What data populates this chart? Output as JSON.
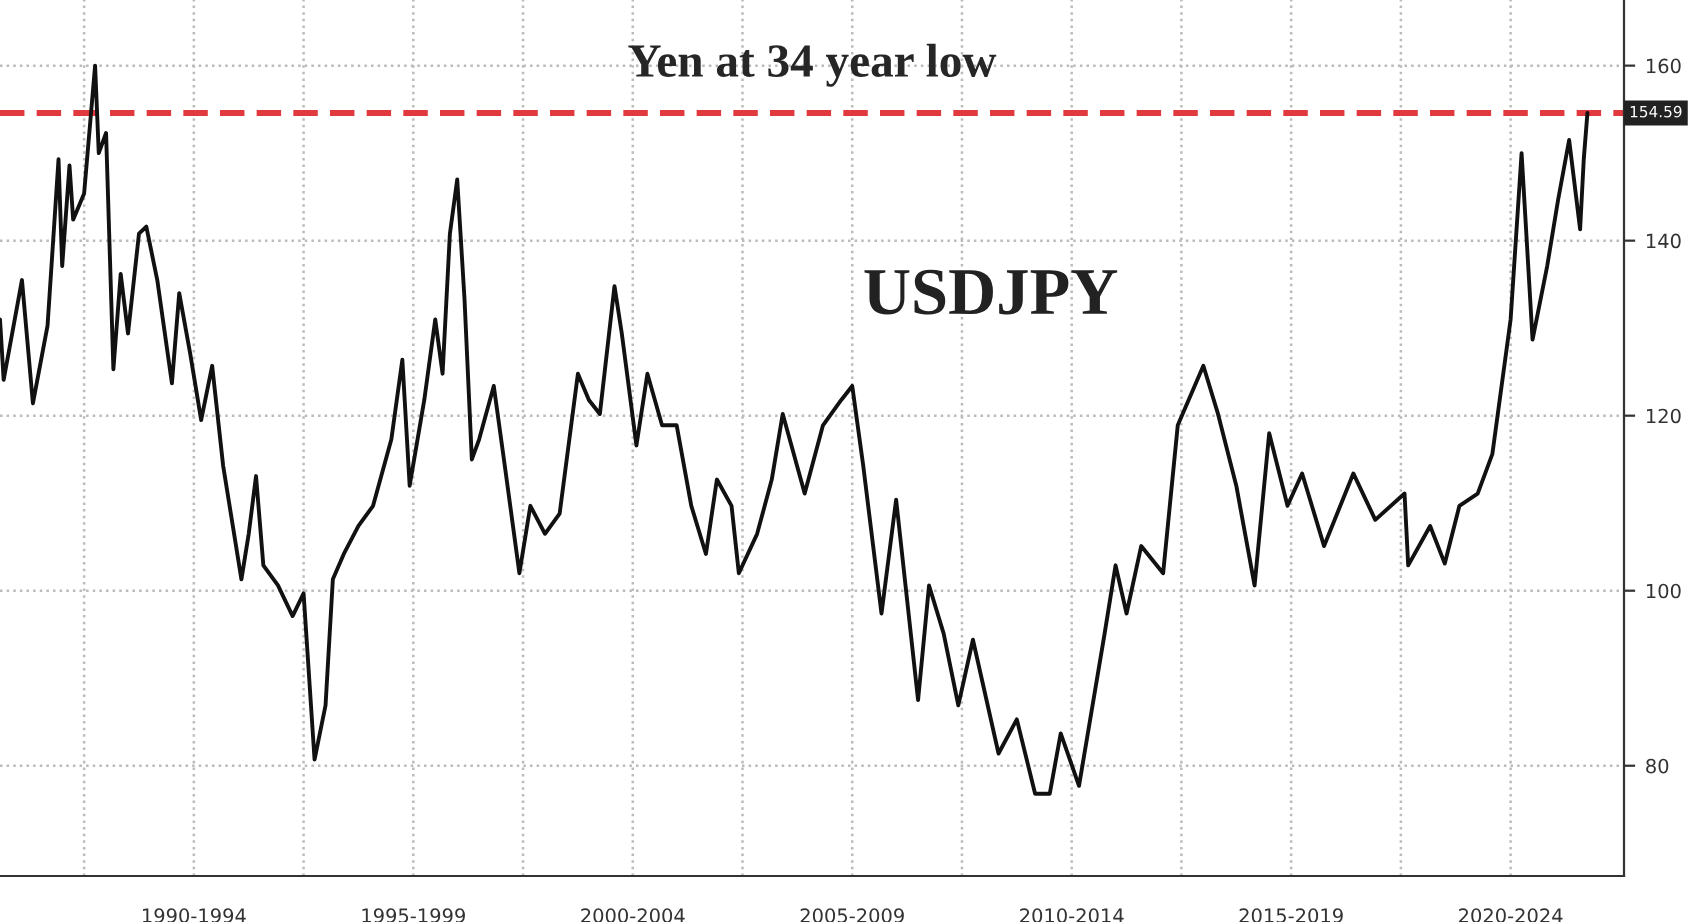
{
  "chart_data": {
    "type": "line",
    "x": [
      "1988-02",
      "1988-03",
      "1988-08",
      "1988-11",
      "1989-03",
      "1989-06",
      "1989-07",
      "1989-09",
      "1989-10",
      "1990-01",
      "1990-04",
      "1990-05",
      "1990-07",
      "1990-09",
      "1990-11",
      "1991-01",
      "1991-04",
      "1991-06",
      "1991-09",
      "1992-01",
      "1992-03",
      "1992-06",
      "1992-09",
      "1992-12",
      "1993-03",
      "1993-08",
      "1993-10",
      "1993-12",
      "1994-02",
      "1994-06",
      "1994-10",
      "1995-01",
      "1995-04",
      "1995-07",
      "1995-09",
      "1995-12",
      "1996-04",
      "1996-08",
      "1997-01",
      "1997-04",
      "1997-06",
      "1997-10",
      "1998-01",
      "1998-03",
      "1998-05",
      "1998-07",
      "1998-09",
      "1998-11",
      "1999-01",
      "1999-05",
      "1999-08",
      "1999-12",
      "2000-03",
      "2000-07",
      "2000-11",
      "2001-04",
      "2001-07",
      "2001-10",
      "2002-02",
      "2002-04",
      "2002-08",
      "2002-11",
      "2003-03",
      "2003-07",
      "2003-11",
      "2004-03",
      "2004-06",
      "2004-10",
      "2004-12",
      "2005-05",
      "2005-09",
      "2005-12",
      "2006-06",
      "2006-11",
      "2007-04",
      "2007-07",
      "2007-10",
      "2008-03",
      "2008-07",
      "2009-01",
      "2009-04",
      "2009-08",
      "2009-12",
      "2010-04",
      "2010-11",
      "2011-04",
      "2011-09",
      "2012-01",
      "2012-04",
      "2012-09",
      "2013-04",
      "2013-07",
      "2013-10",
      "2014-02",
      "2014-08",
      "2014-12",
      "2015-07",
      "2015-11",
      "2016-04",
      "2016-09",
      "2017-01",
      "2017-06",
      "2017-10",
      "2018-04",
      "2018-12",
      "2019-06",
      "2020-02",
      "2020-03",
      "2020-09",
      "2021-01",
      "2021-05",
      "2021-10",
      "2022-02",
      "2022-07",
      "2022-10",
      "2023-01",
      "2023-05",
      "2023-08",
      "2023-11",
      "2024-02",
      "2024-03",
      "2024-04"
    ],
    "series": [
      {
        "color": "#111111",
        "values": [
          131.0,
          124.1,
          135.5,
          121.4,
          130.3,
          149.3,
          137.1,
          148.6,
          142.4,
          145.4,
          160.0,
          150.0,
          152.3,
          125.3,
          136.2,
          129.4,
          140.8,
          141.6,
          135.5,
          123.7,
          134.0,
          127.1,
          119.5,
          125.7,
          114.3,
          101.3,
          106.5,
          113.1,
          102.9,
          100.6,
          97.1,
          99.7,
          80.7,
          86.9,
          101.3,
          104.2,
          107.4,
          109.7,
          117.3,
          126.4,
          112.0,
          121.8,
          131.0,
          124.8,
          140.8,
          147.0,
          133.3,
          115.0,
          117.3,
          123.4,
          114.3,
          102.0,
          109.7,
          106.5,
          108.8,
          124.8,
          121.8,
          120.2,
          134.8,
          129.4,
          116.6,
          124.8,
          118.9,
          118.9,
          109.7,
          104.2,
          112.7,
          109.7,
          102.0,
          106.5,
          112.7,
          120.2,
          111.1,
          118.9,
          121.8,
          123.4,
          114.3,
          97.4,
          110.4,
          87.5,
          100.6,
          95.1,
          86.9,
          94.4,
          81.4,
          85.3,
          76.8,
          76.8,
          83.7,
          77.7,
          95.1,
          102.9,
          97.4,
          105.1,
          102.0,
          118.9,
          125.7,
          120.2,
          112.0,
          100.6,
          118.0,
          109.7,
          113.4,
          105.1,
          113.4,
          108.1,
          111.1,
          102.9,
          107.4,
          103.1,
          109.7,
          111.1,
          115.6,
          131.0,
          150.0,
          128.7,
          137.1,
          144.7,
          151.5,
          141.3,
          149.3,
          154.59
        ]
      }
    ],
    "xlim": [
      "1988-02",
      "2025-02"
    ],
    "xticks": [
      {
        "value": "1990-01",
        "label": null
      },
      {
        "value": "1992-07",
        "label": "1990-1994"
      },
      {
        "value": "1995-01",
        "label": null
      },
      {
        "value": "1997-07",
        "label": "1995-1999"
      },
      {
        "value": "2000-01",
        "label": null
      },
      {
        "value": "2002-07",
        "label": "2000-2004"
      },
      {
        "value": "2005-01",
        "label": null
      },
      {
        "value": "2007-07",
        "label": "2005-2009"
      },
      {
        "value": "2010-01",
        "label": null
      },
      {
        "value": "2012-07",
        "label": "2010-2014"
      },
      {
        "value": "2015-01",
        "label": null
      },
      {
        "value": "2017-07",
        "label": "2015-2019"
      },
      {
        "value": "2020-01",
        "label": null
      },
      {
        "value": "2022-07",
        "label": "2020-2024"
      }
    ],
    "ylim": [
      67.4,
      167.5
    ],
    "yticks": [
      80,
      100,
      120,
      140,
      160
    ],
    "grid": true,
    "marker": "none",
    "line_style": "solid",
    "ref_lines": [
      {
        "axis": "y",
        "value": 154.59,
        "label": "Yen at 34 year low",
        "color": "#e0393e",
        "line_style": "dashed"
      }
    ],
    "annotations": [
      "USDJPY",
      {
        "text": "154.59",
        "x": "2024-04",
        "y": 154.59
      }
    ]
  }
}
